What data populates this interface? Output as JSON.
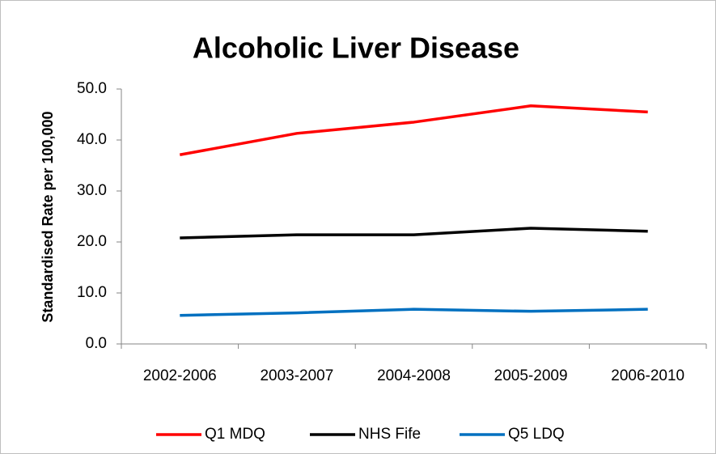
{
  "chart_data": {
    "type": "line",
    "title": "Alcoholic Liver Disease",
    "y_label": "Standardised Rate per 100,000",
    "categories": [
      "2002-2006",
      "2003-2007",
      "2004-2008",
      "2005-2009",
      "2006-2010"
    ],
    "series": [
      {
        "name": "Q1 MDQ",
        "color": "#ff0000",
        "values": [
          37.1,
          41.3,
          43.5,
          46.7,
          45.5
        ]
      },
      {
        "name": "NHS Fife",
        "color": "#000000",
        "values": [
          20.8,
          21.4,
          21.4,
          22.7,
          22.1
        ]
      },
      {
        "name": "Q5 LDQ",
        "color": "#0070c0",
        "values": [
          5.6,
          6.1,
          6.8,
          6.4,
          6.8
        ]
      }
    ],
    "ylim": [
      0,
      50
    ],
    "yticks": [
      {
        "value": 0,
        "label": "0.0"
      },
      {
        "value": 10,
        "label": "10.0"
      },
      {
        "value": 20,
        "label": "20.0"
      },
      {
        "value": 30,
        "label": "30.0"
      },
      {
        "value": 40,
        "label": "40.0"
      },
      {
        "value": 50,
        "label": "50.0"
      }
    ],
    "grid": false,
    "legend": "bottom"
  }
}
